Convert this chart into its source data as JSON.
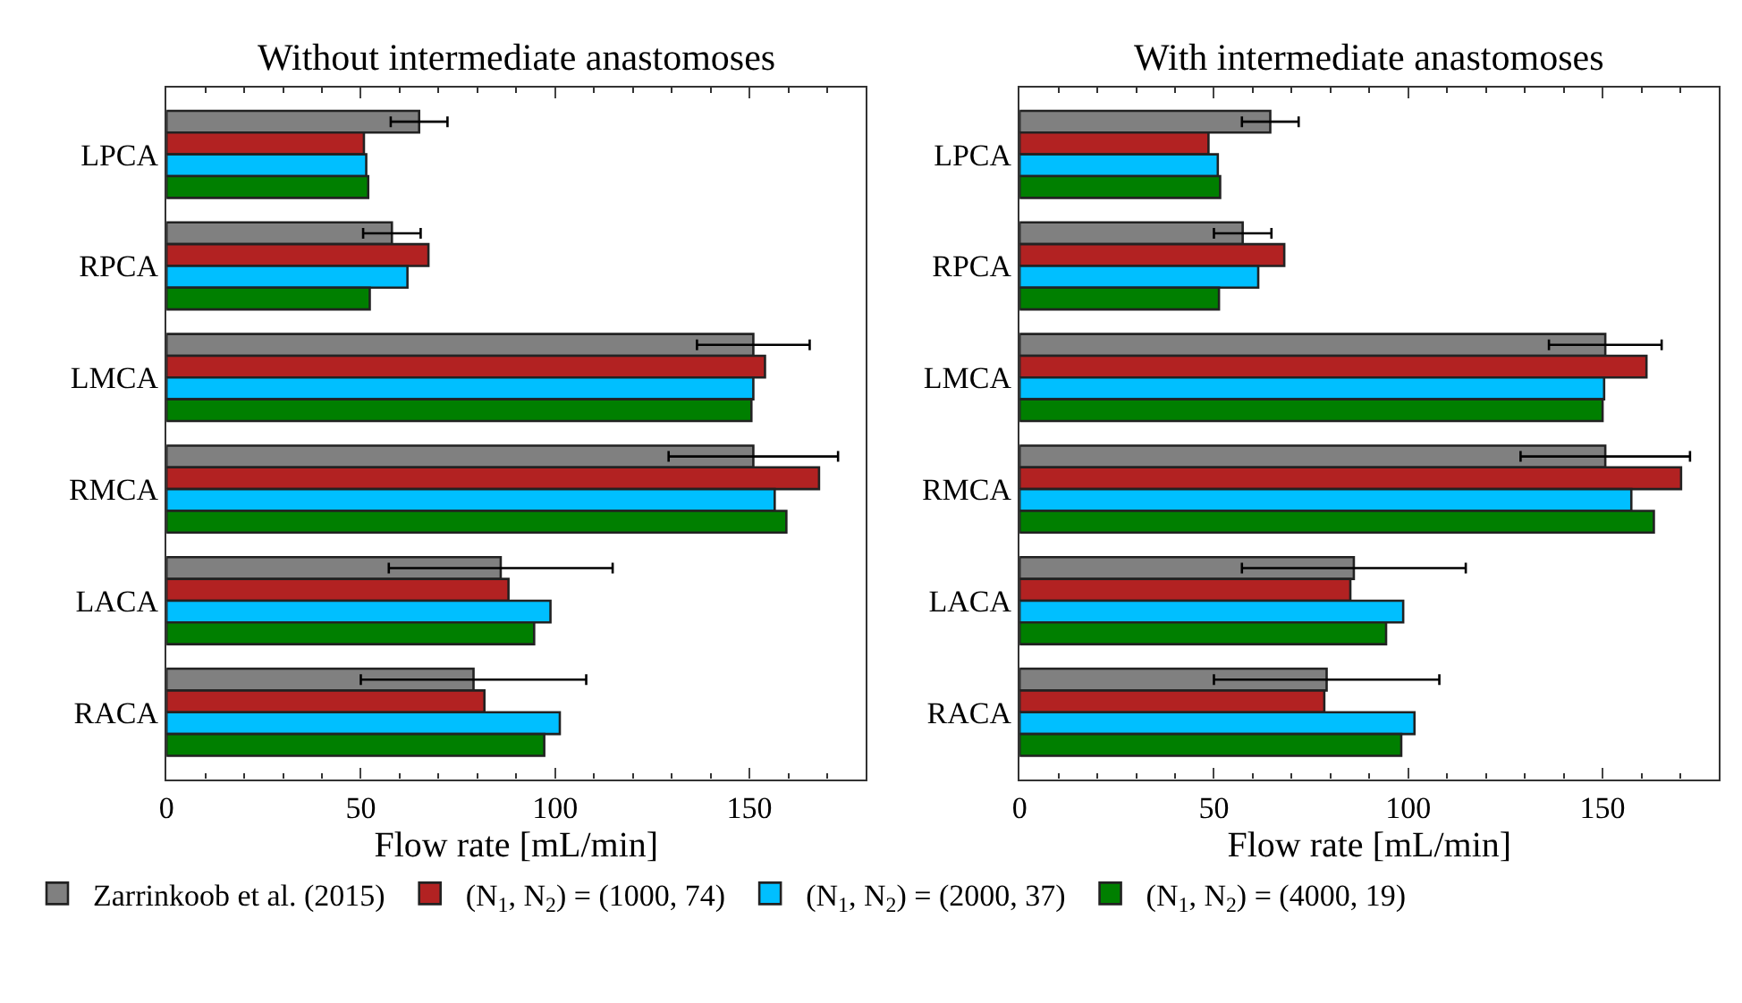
{
  "chart_data": [
    {
      "type": "bar",
      "orientation": "horizontal",
      "title": "Without intermediate anastomoses",
      "xlabel": "Flow rate [mL/min]",
      "categories": [
        "LPCA",
        "RPCA",
        "LMCA",
        "RMCA",
        "LACA",
        "RACA"
      ],
      "xlim": [
        0,
        180
      ],
      "xticks": [
        0,
        50,
        100,
        150
      ],
      "legend": "bottom",
      "series": [
        {
          "name": "Zarrinkoob et al. (2015)",
          "color": "#808080",
          "values": [
            65,
            58,
            151,
            151,
            86,
            79
          ],
          "errors": [
            7.3,
            7.4,
            14.5,
            21.8,
            28.8,
            29
          ]
        },
        {
          "name": "(N$_{1}$, N$_{2}$) = (1000, 74)",
          "color": "#b22222",
          "values": [
            50.8,
            67.4,
            154,
            167.9,
            88,
            81.8
          ]
        },
        {
          "name": "(N$_{1}$, N$_{2}$) = (2000, 37)",
          "color": "#00bfff",
          "values": [
            51.4,
            62,
            151,
            156.5,
            98.8,
            101.2
          ]
        },
        {
          "name": "(N$_{1}$, N$_{2}$) = (4000, 19)",
          "color": "#007f00",
          "values": [
            51.9,
            52.3,
            150.5,
            159.5,
            94.6,
            97.2
          ]
        }
      ]
    },
    {
      "type": "bar",
      "orientation": "horizontal",
      "title": "With intermediate anastomoses",
      "xlabel": "Flow rate [mL/min]",
      "categories": [
        "LPCA",
        "RPCA",
        "LMCA",
        "RMCA",
        "LACA",
        "RACA"
      ],
      "xlim": [
        0,
        180
      ],
      "xticks": [
        0,
        50,
        100,
        150
      ],
      "series": [
        {
          "color": "#808080",
          "values": [
            64.5,
            57.4,
            150.7,
            150.7,
            86,
            79
          ],
          "errors": [
            7.3,
            7.4,
            14.5,
            21.8,
            28.8,
            29
          ]
        },
        {
          "color": "#b22222",
          "values": [
            48.6,
            68.1,
            161.3,
            170.2,
            85.1,
            78.4
          ]
        },
        {
          "color": "#00bfff",
          "values": [
            51,
            61.4,
            150.4,
            157.4,
            98.7,
            101.6
          ]
        },
        {
          "color": "#007f00",
          "values": [
            51.6,
            51.3,
            150,
            163.2,
            94.3,
            98.2
          ]
        }
      ]
    }
  ]
}
